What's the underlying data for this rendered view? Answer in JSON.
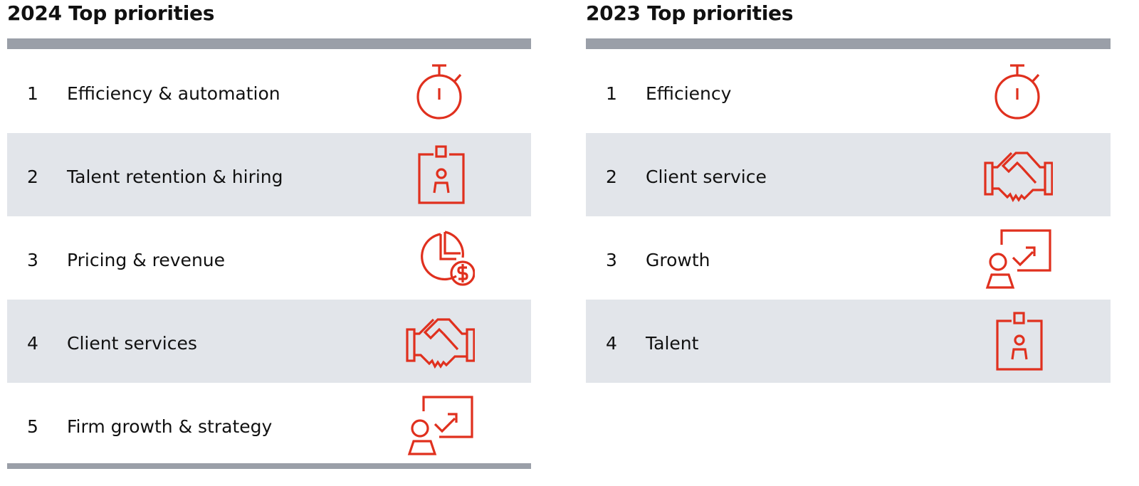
{
  "accent_color": "#e0301e",
  "panels": [
    {
      "title": "2024 Top priorities",
      "rows": [
        {
          "rank": "1",
          "label": "Efficiency & automation",
          "icon": "stopwatch-icon"
        },
        {
          "rank": "2",
          "label": "Talent retention & hiring",
          "icon": "id-badge-icon"
        },
        {
          "rank": "3",
          "label": "Pricing & revenue",
          "icon": "pie-chart-dollar-icon"
        },
        {
          "rank": "4",
          "label": "Client services",
          "icon": "handshake-icon"
        },
        {
          "rank": "5",
          "label": "Firm growth & strategy",
          "icon": "presenter-growth-icon"
        }
      ]
    },
    {
      "title": "2023 Top priorities",
      "rows": [
        {
          "rank": "1",
          "label": "Efficiency",
          "icon": "stopwatch-icon"
        },
        {
          "rank": "2",
          "label": "Client service",
          "icon": "handshake-icon"
        },
        {
          "rank": "3",
          "label": "Growth",
          "icon": "presenter-growth-icon"
        },
        {
          "rank": "4",
          "label": "Talent",
          "icon": "id-badge-icon"
        }
      ]
    }
  ]
}
